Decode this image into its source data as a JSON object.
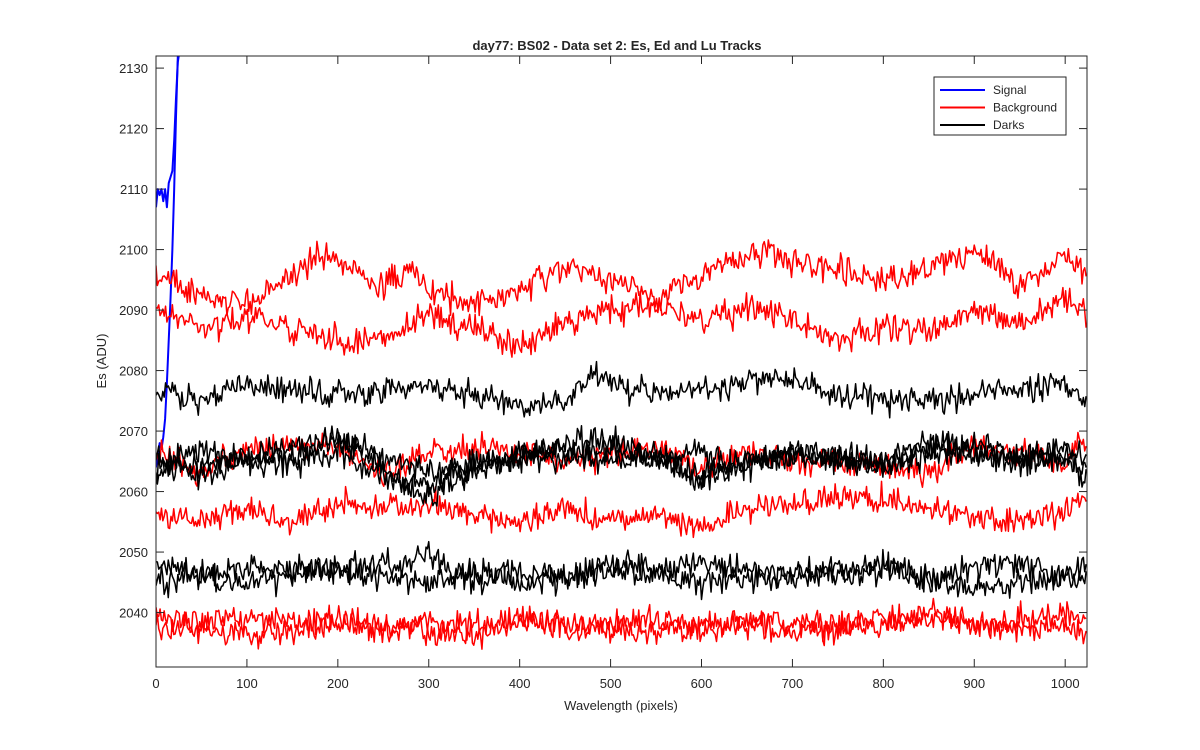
{
  "chart_data": {
    "type": "line",
    "title": "day77: BS02 - Data set 2: Es, Ed and Lu Tracks",
    "xlabel": "Wavelength (pixels)",
    "ylabel": "Es (ADU)",
    "xlim": [
      0,
      1024
    ],
    "ylim": [
      2031,
      2132
    ],
    "xticks": [
      0,
      100,
      200,
      300,
      400,
      500,
      600,
      700,
      800,
      900,
      1000
    ],
    "yticks": [
      2040,
      2050,
      2060,
      2070,
      2080,
      2090,
      2100,
      2110,
      2120,
      2130
    ],
    "grid": false,
    "legend_position": "top-right",
    "legend": [
      {
        "name": "Signal",
        "color": "#0000ff"
      },
      {
        "name": "Background",
        "color": "#ff0000"
      },
      {
        "name": "Darks",
        "color": "#000000"
      }
    ],
    "series": [
      {
        "group": "Signal",
        "color": "#0000ff",
        "x": [
          0,
          2,
          4,
          6,
          8,
          10,
          12,
          14,
          16,
          18,
          20,
          22,
          24,
          25
        ],
        "y": [
          2107,
          2110,
          2109,
          2110,
          2108,
          2110,
          2107,
          2111,
          2112,
          2113,
          2118,
          2125,
          2131,
          2132
        ]
      },
      {
        "group": "Signal",
        "color": "#0000ff",
        "x": [
          0,
          2,
          4,
          6,
          8,
          10,
          12,
          14,
          16,
          18,
          20,
          22,
          24
        ],
        "y": [
          2064,
          2066,
          2068,
          2067,
          2069,
          2072,
          2078,
          2085,
          2092,
          2100,
          2110,
          2122,
          2132
        ]
      },
      {
        "group": "Background",
        "color": "#ff0000",
        "x": [
          0,
          50,
          100,
          150,
          180,
          200,
          250,
          280,
          300,
          350,
          400,
          450,
          500,
          550,
          600,
          650,
          680,
          700,
          750,
          800,
          850,
          900,
          950,
          1000,
          1024
        ],
        "y": [
          2096,
          2092,
          2091,
          2096,
          2099,
          2098,
          2094,
          2097,
          2093,
          2091,
          2093,
          2097,
          2095,
          2092,
          2096,
          2099,
          2100,
          2098,
          2097,
          2095,
          2097,
          2100,
          2094,
          2099,
          2096
        ]
      },
      {
        "group": "Background",
        "color": "#ff0000",
        "x": [
          0,
          50,
          100,
          150,
          200,
          250,
          300,
          350,
          400,
          450,
          500,
          550,
          600,
          650,
          700,
          750,
          800,
          850,
          900,
          950,
          1000,
          1024
        ],
        "y": [
          2090,
          2087,
          2089,
          2087,
          2085,
          2085,
          2089,
          2087,
          2084,
          2088,
          2090,
          2091,
          2088,
          2090,
          2089,
          2085,
          2087,
          2087,
          2090,
          2088,
          2092,
          2089
        ]
      },
      {
        "group": "Background",
        "color": "#ff0000",
        "x": [
          0,
          50,
          100,
          150,
          200,
          250,
          300,
          350,
          400,
          450,
          500,
          550,
          600,
          650,
          700,
          750,
          800,
          850,
          900,
          950,
          1000,
          1024
        ],
        "y": [
          2066,
          2063,
          2067,
          2068,
          2067,
          2063,
          2066,
          2067,
          2067,
          2065,
          2066,
          2067,
          2064,
          2066,
          2065,
          2065,
          2064,
          2063,
          2068,
          2066,
          2065,
          2069
        ]
      },
      {
        "group": "Background",
        "color": "#ff0000",
        "x": [
          0,
          50,
          100,
          150,
          200,
          250,
          300,
          350,
          400,
          450,
          500,
          550,
          600,
          650,
          700,
          750,
          800,
          850,
          900,
          950,
          1000,
          1024
        ],
        "y": [
          2056,
          2055,
          2057,
          2055,
          2058,
          2057,
          2058,
          2056,
          2055,
          2057,
          2055,
          2056,
          2054,
          2057,
          2058,
          2059,
          2059,
          2057,
          2056,
          2055,
          2057,
          2059
        ]
      },
      {
        "group": "Background",
        "color": "#ff0000",
        "x": [
          0,
          50,
          100,
          150,
          200,
          250,
          300,
          350,
          400,
          450,
          500,
          550,
          600,
          650,
          700,
          750,
          800,
          850,
          900,
          950,
          1000,
          1024
        ],
        "y": [
          2039,
          2038,
          2039,
          2038,
          2039,
          2037,
          2038,
          2038,
          2039,
          2038,
          2038,
          2039,
          2037,
          2039,
          2038,
          2038,
          2039,
          2039,
          2038,
          2039,
          2039,
          2039
        ]
      },
      {
        "group": "Background",
        "color": "#ff0000",
        "x": [
          0,
          50,
          100,
          150,
          200,
          250,
          300,
          350,
          400,
          450,
          500,
          550,
          600,
          650,
          700,
          750,
          800,
          850,
          900,
          950,
          1000,
          1024
        ],
        "y": [
          2037,
          2038,
          2036,
          2037,
          2038,
          2038,
          2037,
          2036,
          2038,
          2038,
          2037,
          2037,
          2038,
          2038,
          2037,
          2037,
          2038,
          2040,
          2038,
          2037,
          2038,
          2036
        ]
      },
      {
        "group": "Darks",
        "color": "#000000",
        "x": [
          0,
          50,
          100,
          150,
          200,
          250,
          300,
          350,
          400,
          450,
          480,
          500,
          550,
          600,
          650,
          700,
          750,
          800,
          850,
          900,
          950,
          1000,
          1024
        ],
        "y": [
          2076,
          2075,
          2078,
          2077,
          2076,
          2077,
          2077,
          2076,
          2074,
          2075,
          2080,
          2078,
          2076,
          2077,
          2078,
          2079,
          2076,
          2075,
          2075,
          2076,
          2077,
          2078,
          2074
        ]
      },
      {
        "group": "Darks",
        "color": "#000000",
        "x": [
          0,
          50,
          100,
          150,
          200,
          250,
          300,
          350,
          400,
          450,
          500,
          550,
          600,
          650,
          700,
          750,
          800,
          850,
          900,
          950,
          1000,
          1024
        ],
        "y": [
          2064,
          2067,
          2065,
          2068,
          2069,
          2066,
          2063,
          2065,
          2065,
          2068,
          2069,
          2066,
          2063,
          2065,
          2066,
          2066,
          2065,
          2068,
          2066,
          2065,
          2067,
          2066
        ]
      },
      {
        "group": "Darks",
        "color": "#000000",
        "x": [
          0,
          50,
          100,
          150,
          200,
          250,
          300,
          350,
          400,
          450,
          500,
          550,
          600,
          650,
          700,
          750,
          800,
          850,
          900,
          950,
          1000,
          1024
        ],
        "y": [
          2063,
          2064,
          2066,
          2064,
          2067,
          2062,
          2061,
          2064,
          2066,
          2065,
          2067,
          2065,
          2066,
          2064,
          2066,
          2065,
          2065,
          2067,
          2068,
          2065,
          2066,
          2063
        ]
      },
      {
        "group": "Darks",
        "color": "#000000",
        "x": [
          0,
          50,
          100,
          150,
          200,
          250,
          300,
          350,
          400,
          450,
          500,
          550,
          600,
          650,
          700,
          750,
          800,
          850,
          900,
          950,
          1000,
          1024
        ],
        "y": [
          2066,
          2063,
          2065,
          2066,
          2069,
          2064,
          2059,
          2064,
          2066,
          2067,
          2065,
          2066,
          2062,
          2065,
          2066,
          2065,
          2064,
          2066,
          2067,
          2066,
          2065,
          2062
        ]
      },
      {
        "group": "Darks",
        "color": "#000000",
        "x": [
          0,
          50,
          100,
          150,
          200,
          250,
          300,
          350,
          400,
          450,
          500,
          550,
          600,
          650,
          700,
          750,
          800,
          850,
          900,
          950,
          1000,
          1024
        ],
        "y": [
          2048,
          2046,
          2048,
          2047,
          2047,
          2048,
          2049,
          2045,
          2047,
          2046,
          2048,
          2047,
          2048,
          2047,
          2046,
          2047,
          2048,
          2045,
          2047,
          2048,
          2046,
          2048
        ]
      },
      {
        "group": "Darks",
        "color": "#000000",
        "x": [
          0,
          50,
          100,
          150,
          200,
          250,
          300,
          350,
          400,
          450,
          500,
          550,
          600,
          650,
          700,
          750,
          800,
          850,
          900,
          950,
          1000,
          1024
        ],
        "y": [
          2045,
          2046,
          2045,
          2046,
          2047,
          2046,
          2045,
          2047,
          2045,
          2046,
          2047,
          2046,
          2045,
          2046,
          2046,
          2046,
          2047,
          2046,
          2044,
          2045,
          2046,
          2046
        ]
      }
    ]
  }
}
